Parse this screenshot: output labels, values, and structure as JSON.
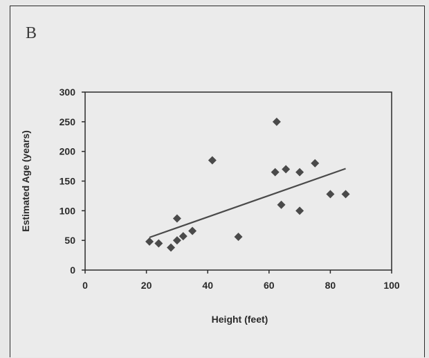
{
  "panel_label": "B",
  "chart_data": {
    "type": "scatter",
    "title": "",
    "xlabel": "Height (feet)",
    "ylabel": "Estimated Age (years)",
    "xlim": [
      0,
      100
    ],
    "ylim": [
      0,
      300
    ],
    "xticks": [
      0,
      20,
      40,
      60,
      80,
      100
    ],
    "yticks": [
      0,
      50,
      100,
      150,
      200,
      250,
      300
    ],
    "grid": false,
    "legend": "none",
    "marker": "diamond",
    "marker_color": "#4a4a4a",
    "series": [
      {
        "x": [
          21,
          24,
          28,
          30,
          30,
          32,
          35,
          41.5,
          50,
          62,
          62.5,
          64,
          65.5,
          70,
          70,
          75,
          80,
          85
        ],
        "y": [
          48,
          45,
          38,
          50,
          87,
          57,
          66,
          185,
          56,
          165,
          250,
          110,
          170,
          165,
          100,
          180,
          128,
          128
        ]
      }
    ],
    "trendline": {
      "x": [
        21,
        85
      ],
      "y": [
        55,
        171
      ]
    }
  }
}
